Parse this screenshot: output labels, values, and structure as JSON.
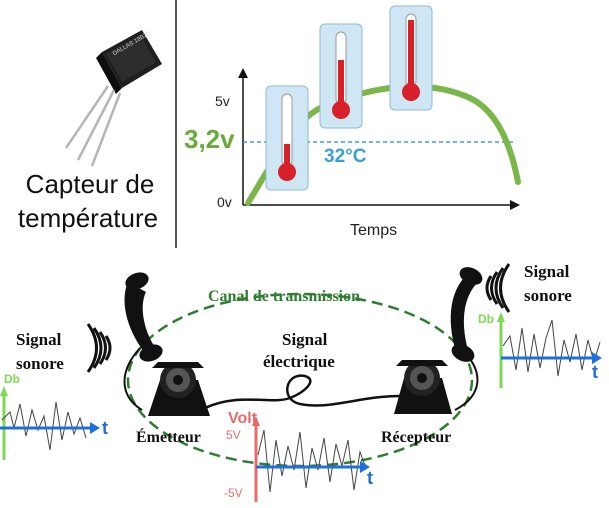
{
  "sensor": {
    "caption_line1": "Capteur de",
    "caption_line2": "température",
    "chip_marking": "DALLAS 18B20"
  },
  "temperature_graph": {
    "y_top_label": "5v",
    "y_mid_label": "3,2v",
    "y_bottom_label": "0v",
    "x_label": "Temps",
    "temperature_label": "32°C",
    "colors": {
      "curve": "#7ab648",
      "mid_label": "#6aaa3a",
      "dashed": "#3aa0d8",
      "temp": "#3aa0d8"
    }
  },
  "transmission": {
    "channel_label": "Canal de transmission",
    "electric_signal_line1": "Signal",
    "electric_signal_line2": "électrique",
    "left_sound_line1": "Signal",
    "left_sound_line2": "sonore",
    "right_sound_line1": "Signal",
    "right_sound_line2": "sonore",
    "emitter_label": "Émetteur",
    "receiver_label": "Récepteur",
    "db_label_left": "Db",
    "db_label_right": "Db",
    "t_label_left": "t",
    "t_label_right": "t",
    "t_label_center": "t",
    "volt_label": "Volt",
    "plus5_label": "5V",
    "minus5_label": "-5V",
    "colors": {
      "channel": "#2e7d32",
      "axis": "#1e6fd9",
      "db": "#7ed957",
      "volt": "#e86b6b"
    }
  }
}
